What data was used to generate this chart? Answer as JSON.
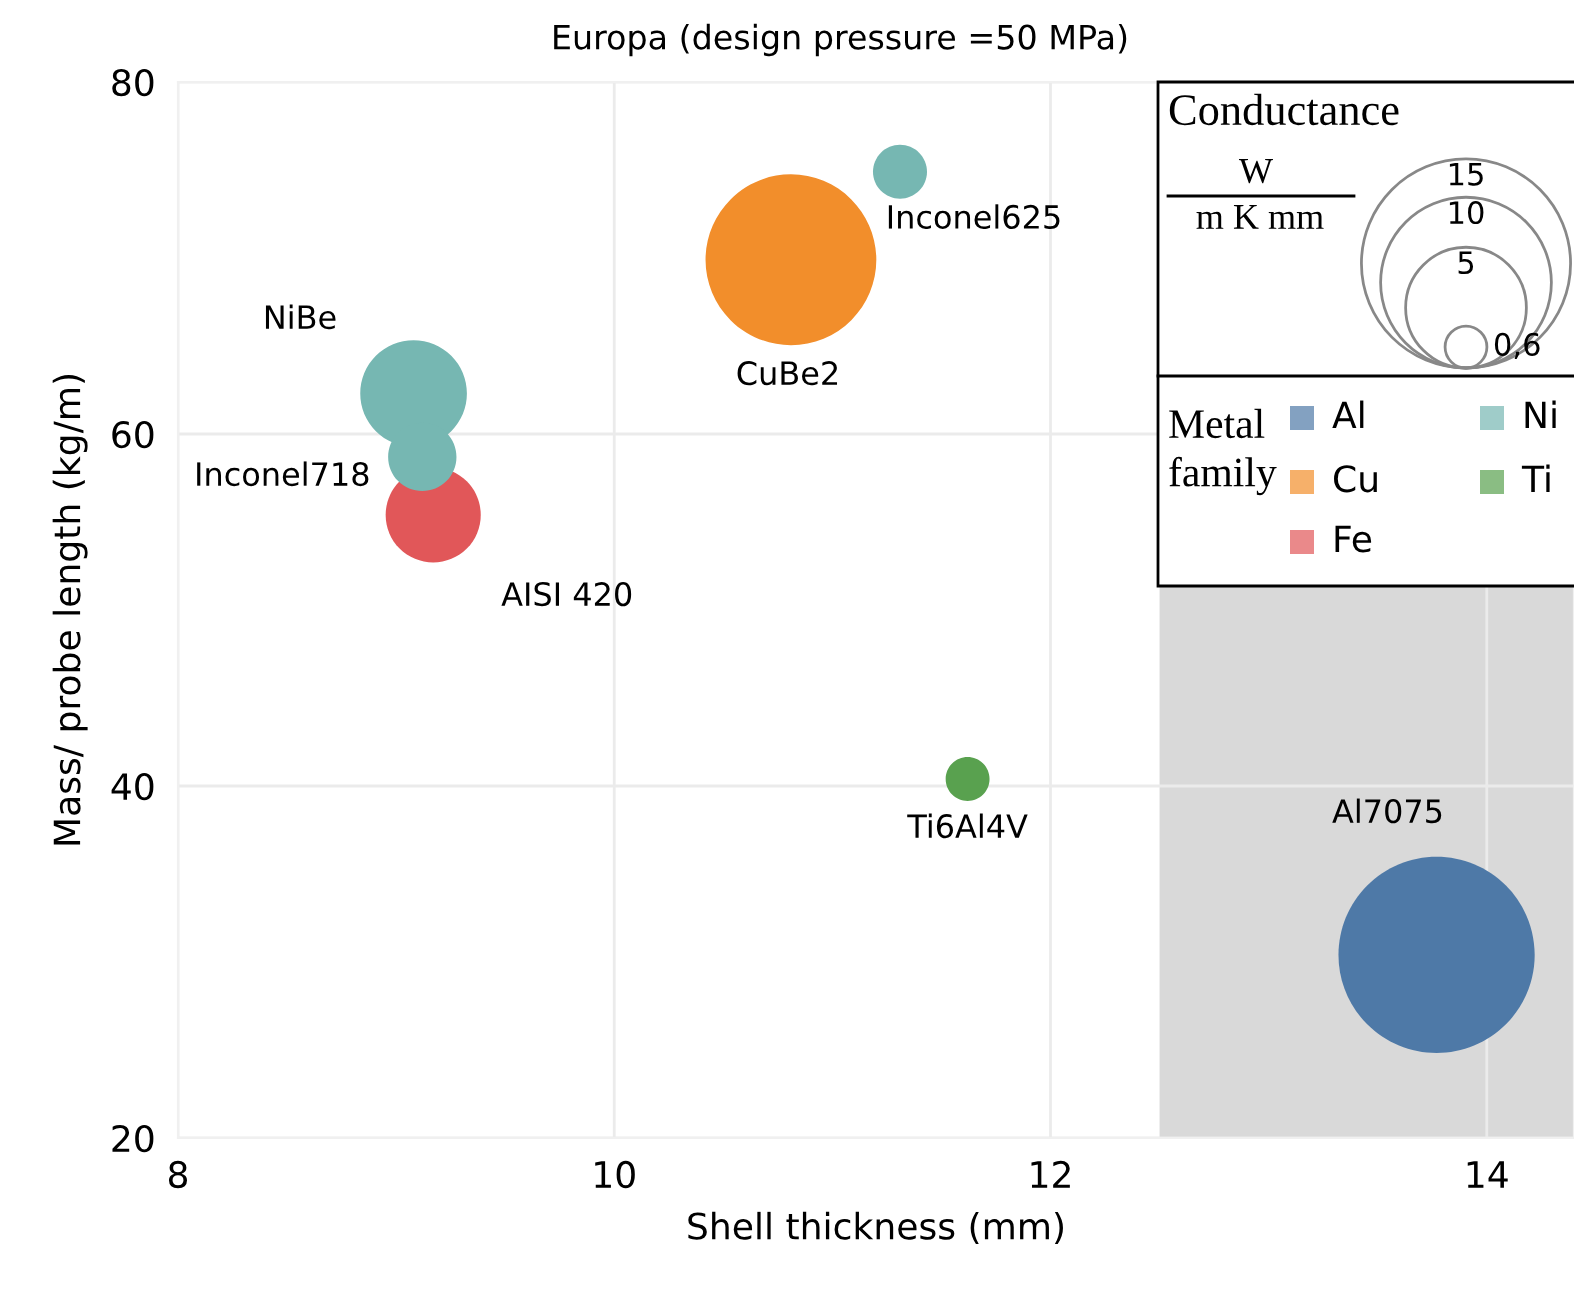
{
  "chart_data": {
    "type": "bubble",
    "title": "Europa (design pressure =50 MPa)",
    "xlabel": "Shell thickness (mm)",
    "ylabel": "Mass/ probe length (kg/m)",
    "legend_title": [
      "Conductance",
      "W",
      "m K mm",
      "Metal family"
    ],
    "series": [
      {
        "name": "Al",
        "color": "#4e79a7",
        "x": [
          13.77
        ],
        "values": [
          30.4
        ],
        "sizes": [
          13.2
        ]
      },
      {
        "name": "Cu",
        "color": "#f28e2b",
        "x": [
          10.81
        ],
        "values": [
          69.9
        ],
        "sizes": [
          10.0
        ]
      },
      {
        "name": "Fe",
        "color": "#e15759",
        "x": [
          9.17
        ],
        "values": [
          55.4
        ],
        "sizes": [
          3.1
        ]
      },
      {
        "name": "Ni",
        "color": "#76b7b2",
        "x": [
          9.08,
          9.12,
          11.31
        ],
        "values": [
          62.3,
          58.7,
          74.9
        ],
        "sizes": [
          3.9,
          1.6,
          1.0
        ]
      },
      {
        "name": "Ti",
        "color": "#59a14f",
        "x": [
          11.62
        ],
        "values": [
          40.4
        ],
        "sizes": [
          0.66
        ]
      }
    ],
    "size_legend": [
      {
        "value": 0.6,
        "label": "0,6"
      },
      5,
      10,
      15
    ],
    "annotations": [
      "Al7075",
      "CuBe2",
      {
        "text": "AISI 420",
        "x": 9.17,
        "y": 55.4
      },
      "NiBe",
      {
        "text": "Inconel718",
        "x": 9.12,
        "y": 58.7
      },
      {
        "text": "Inconel625",
        "x": 11.31,
        "y": 74.9
      },
      {
        "text": "Ti6Al4V",
        "x": 11.62,
        "y": 40.4
      }
    ],
    "bands": [
      {
        "axis": "x",
        "from": 12.5,
        "to": 14.4,
        "color": "#d9d9d9"
      }
    ],
    "xlim": [
      8,
      14.4
    ],
    "xticks": [
      8,
      10,
      12,
      14
    ],
    "ylim": [
      20,
      80
    ],
    "yticks": [
      20,
      40,
      60,
      80
    ],
    "grid": true,
    "legend": "top right",
    "marker": "circle"
  }
}
